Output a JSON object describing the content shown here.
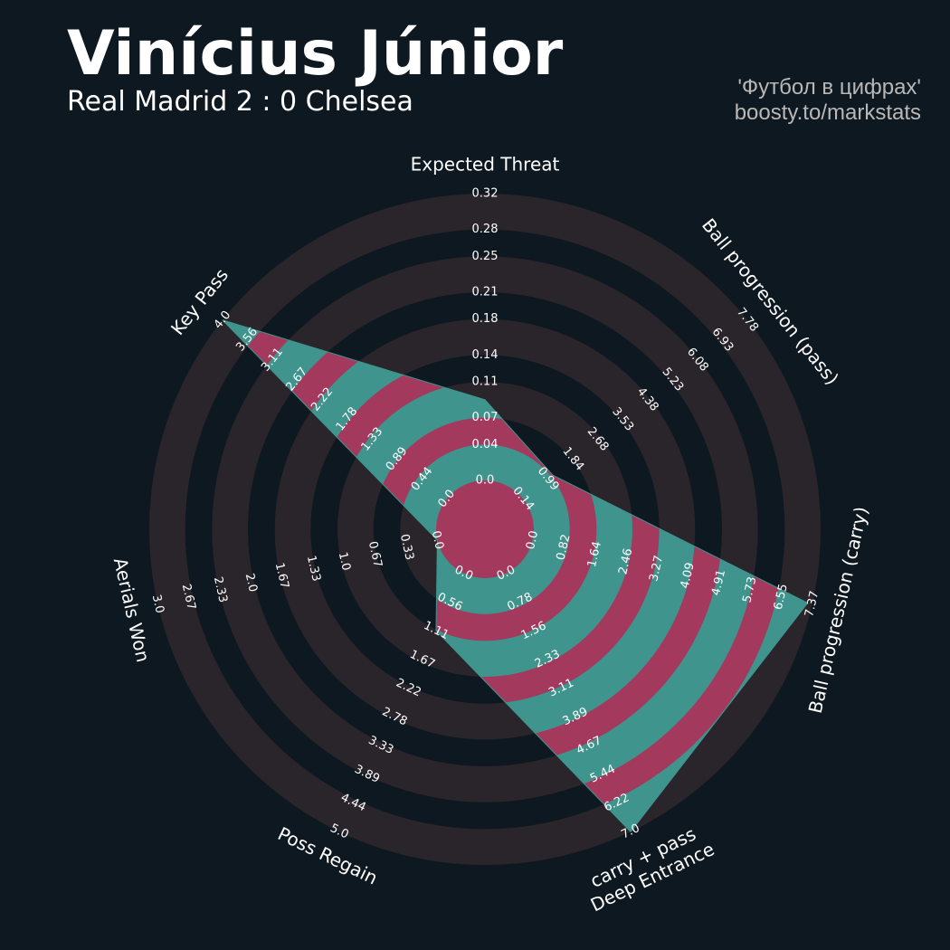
{
  "chart_data": {
    "type": "radar",
    "title": "Vinícius Júnior",
    "subtitle": "Real Madrid 2 : 0 Chelsea",
    "credits": [
      "'Футбол в цифрах'",
      "boosty.to/markstats"
    ],
    "categories": [
      "Expected Threat",
      "Ball progression (pass)",
      "Ball progression (carry)",
      [
        "Deep Entrance",
        "carry + pass"
      ],
      "Poss Regain",
      "Aerials Won",
      "Key Pass"
    ],
    "values": [
      0.09,
      1.15,
      7.25,
      7.0,
      1.11,
      0,
      4.0
    ],
    "axes": [
      {
        "lim": [
          0,
          0.32
        ],
        "ticks": [
          {
            "value": 0,
            "label": "0.0"
          },
          0.04,
          0.07,
          0.11,
          0.14,
          0.18,
          0.21,
          0.25,
          0.28,
          0.32
        ]
      },
      {
        "lim": [
          0.14,
          7.78
        ],
        "ticks": [
          0.14,
          0.99,
          1.84,
          2.68,
          3.53,
          4.38,
          5.23,
          6.08,
          6.93,
          7.78
        ]
      },
      {
        "lim": [
          0,
          7.37
        ],
        "ticks": [
          {
            "value": 0,
            "label": "0.0"
          },
          0.82,
          1.64,
          2.46,
          3.27,
          4.09,
          4.91,
          5.73,
          6.55,
          7.37
        ]
      },
      {
        "lim": [
          0,
          7
        ],
        "ticks": [
          {
            "value": 0,
            "label": "0.0"
          },
          0.78,
          1.56,
          2.33,
          3.11,
          3.89,
          4.67,
          5.44,
          6.22,
          {
            "value": 7,
            "label": "7.0"
          }
        ]
      },
      {
        "lim": [
          0,
          5
        ],
        "ticks": [
          {
            "value": 0,
            "label": "0.0"
          },
          0.56,
          1.11,
          1.67,
          2.22,
          2.78,
          3.33,
          3.89,
          4.44,
          {
            "value": 5,
            "label": "5.0"
          }
        ]
      },
      {
        "lim": [
          0,
          3
        ],
        "ticks": [
          {
            "value": 0,
            "label": "0.0"
          },
          0.33,
          0.67,
          {
            "value": 1,
            "label": "1.0"
          },
          1.33,
          1.67,
          {
            "value": 2,
            "label": "2.0"
          },
          2.33,
          2.67,
          {
            "value": 3,
            "label": "3.0"
          }
        ]
      },
      {
        "lim": [
          0,
          4
        ],
        "ticks": [
          {
            "value": 0,
            "label": "0.0"
          },
          0.44,
          0.89,
          1.33,
          1.78,
          2.22,
          2.67,
          3.11,
          3.56,
          {
            "value": 4,
            "label": "4.0"
          }
        ]
      }
    ],
    "colors": {
      "ring": "#2a252b",
      "background": "#0e1820",
      "fill": "#3f958d",
      "fill_alt": "#a33a5e"
    }
  }
}
